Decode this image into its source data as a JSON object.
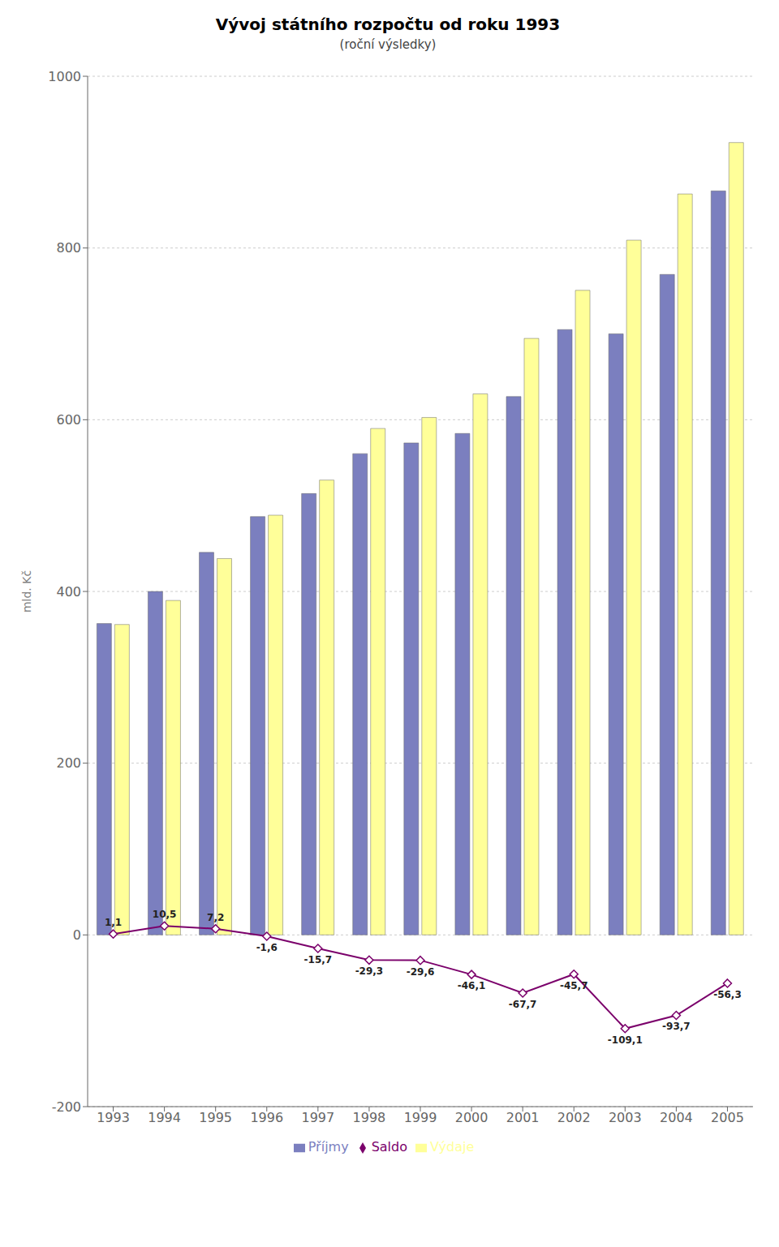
{
  "chart_data": {
    "type": "bar",
    "title": "Vývoj státního rozpočtu od roku 1993",
    "subtitle": "(roční výsledky)",
    "y_label": "mld. Kč",
    "categories": [
      "1993",
      "1994",
      "1995",
      "1996",
      "1997",
      "1998",
      "1999",
      "2000",
      "2001",
      "2002",
      "2003",
      "2004",
      "2005"
    ],
    "series": [
      {
        "name": "Příjmy",
        "color": "#7B7FBF",
        "values": [
          362.6,
          400.0,
          445.5,
          487.2,
          514.0,
          560.5,
          573.0,
          584.0,
          627.0,
          705.0,
          700.0,
          769.2,
          866.5
        ]
      },
      {
        "name": "Výdaje",
        "color": "#FFFF99",
        "values": [
          361.5,
          389.5,
          438.3,
          488.8,
          529.7,
          589.8,
          602.6,
          630.1,
          694.7,
          750.7,
          809.1,
          862.9,
          922.8
        ]
      },
      {
        "name": "Saldo",
        "type": "line",
        "color": "#7B006B",
        "marker": "diamond",
        "data_labels": true,
        "values": [
          1.1,
          10.5,
          7.2,
          -1.6,
          -15.7,
          -29.3,
          -29.6,
          -46.1,
          -67.7,
          -45.7,
          -109.1,
          -93.7,
          -56.3
        ],
        "value_labels": [
          "1,1",
          "10,5",
          "7,2",
          "-1,6",
          "-15,7",
          "-29,3",
          "-29,6",
          "-46,1",
          "-67,7",
          "-45,7",
          "-109,1",
          "-93,7",
          "-56,3"
        ]
      }
    ],
    "ylim": [
      -200,
      1000
    ],
    "yticks": [
      -200,
      0,
      200,
      400,
      600,
      800,
      1000
    ],
    "grid": true,
    "legend": "bottom"
  }
}
